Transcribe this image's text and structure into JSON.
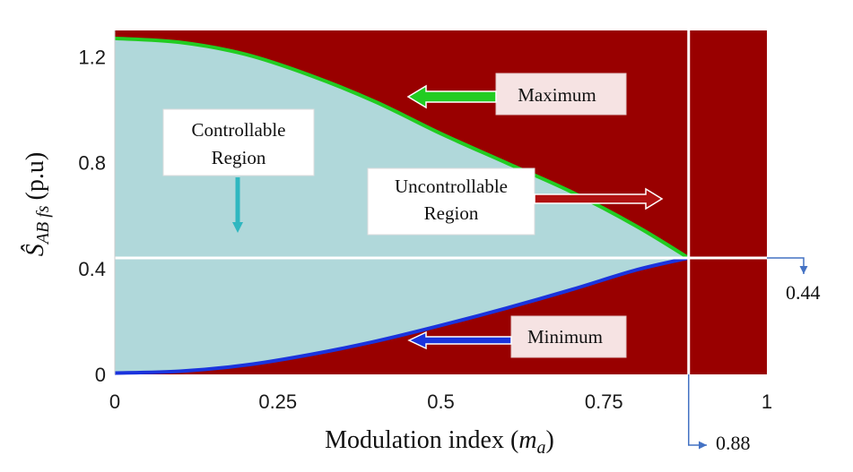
{
  "chart_data": {
    "type": "area",
    "xlabel_main": "Modulation index (",
    "xlabel_var": "m",
    "xlabel_sub": "a",
    "xlabel_close": ")",
    "ylabel_main": "Ŝ",
    "ylabel_sub": "AB fs",
    "ylabel_unit": "(p.u)",
    "xlim": [
      0,
      1
    ],
    "ylim": [
      0,
      1.3
    ],
    "x_ticks": [
      0,
      0.25,
      0.5,
      0.75,
      1
    ],
    "x_tick_labels": [
      "0",
      "0.25",
      "0.5",
      "0.75",
      "1"
    ],
    "y_ticks": [
      0,
      0.4,
      0.8,
      1.2
    ],
    "y_tick_labels": [
      "0",
      "0.4",
      "0.8",
      "1.2"
    ],
    "series": [
      {
        "name": "Maximum",
        "color": "#22cc22",
        "x": [
          0,
          0.1,
          0.2,
          0.3,
          0.4,
          0.5,
          0.6,
          0.7,
          0.8,
          0.88
        ],
        "values": [
          1.27,
          1.255,
          1.21,
          1.13,
          1.03,
          0.91,
          0.8,
          0.69,
          0.56,
          0.44
        ]
      },
      {
        "name": "Minimum",
        "color": "#1a33dd",
        "x": [
          0,
          0.1,
          0.2,
          0.3,
          0.4,
          0.5,
          0.6,
          0.7,
          0.8,
          0.88
        ],
        "values": [
          0.005,
          0.012,
          0.035,
          0.075,
          0.125,
          0.185,
          0.25,
          0.32,
          0.395,
          0.44
        ]
      }
    ],
    "regions": {
      "controllable": {
        "label_line1": "Controllable",
        "label_line2": "Region",
        "color": "#b0d8da"
      },
      "uncontrollable": {
        "label_line1": "Uncontrollable",
        "label_line2": "Region",
        "color": "#990000"
      }
    },
    "annotations": {
      "maximum": "Maximum",
      "minimum": "Minimum",
      "x_marker": {
        "value": 0.88,
        "label": "0.88"
      },
      "y_marker": {
        "value": 0.44,
        "label": "0.44"
      }
    }
  }
}
